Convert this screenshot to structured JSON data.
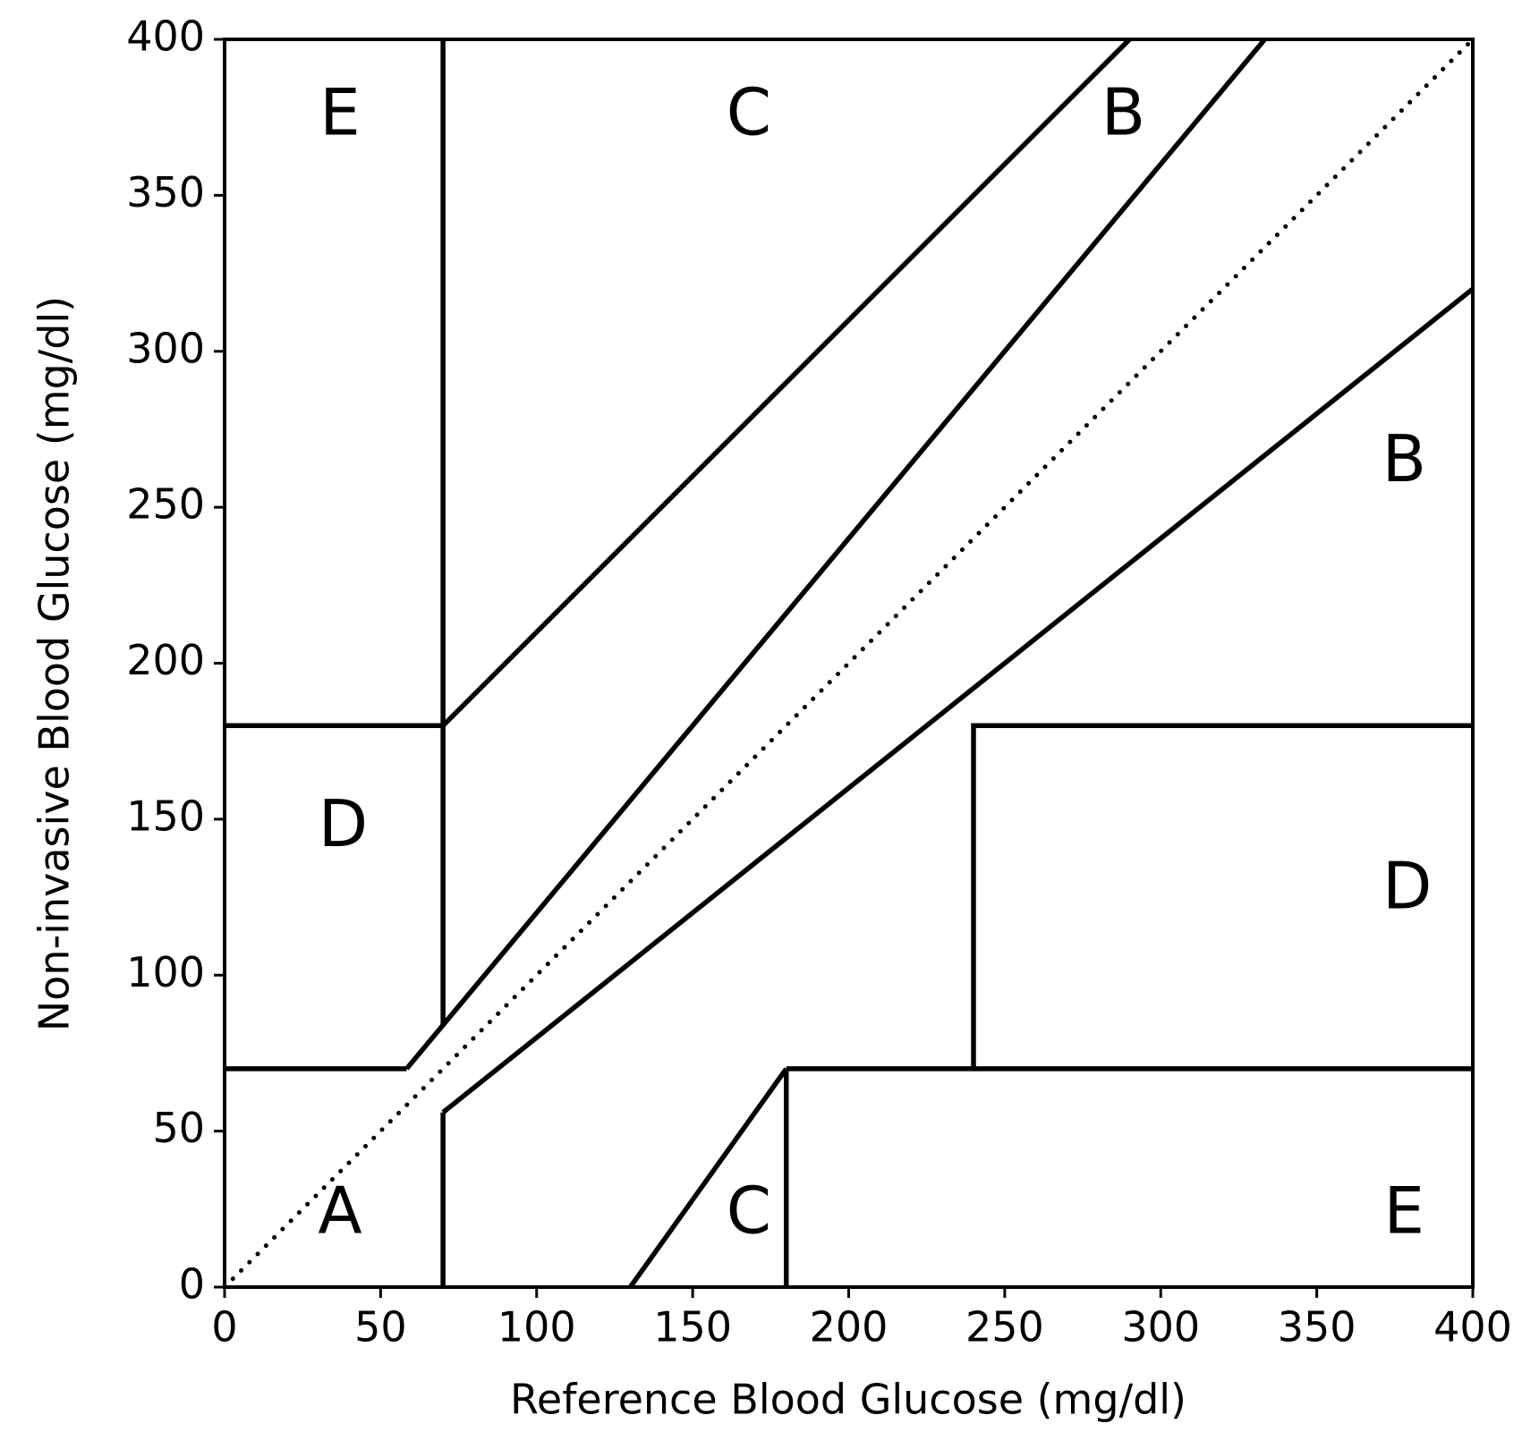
{
  "chart_data": {
    "type": "line",
    "xlabel": "Reference Blood Glucose (mg/dl)",
    "ylabel": "Non-invasive Blood Glucose (mg/dl)",
    "xlim": [
      0,
      400
    ],
    "ylim": [
      0,
      400
    ],
    "xticks": [
      0,
      50,
      100,
      150,
      200,
      250,
      300,
      350,
      400
    ],
    "yticks": [
      0,
      50,
      100,
      150,
      200,
      250,
      300,
      350,
      400
    ],
    "grid": false,
    "series": [
      {
        "color": "#000000",
        "style": "dotted",
        "x": [
          0,
          400
        ],
        "values": [
          0,
          400
        ]
      },
      {
        "color": "#000000",
        "style": "solid",
        "x": [
          0,
          58.33
        ],
        "values": [
          70,
          70
        ]
      },
      {
        "color": "#000000",
        "style": "solid",
        "x": [
          58.33,
          333.33
        ],
        "values": [
          70,
          400
        ]
      },
      {
        "color": "#000000",
        "style": "solid",
        "x": [
          70,
          70
        ],
        "values": [
          84,
          400
        ]
      },
      {
        "color": "#000000",
        "style": "solid",
        "x": [
          0,
          70
        ],
        "values": [
          180,
          180
        ]
      },
      {
        "color": "#000000",
        "style": "solid",
        "x": [
          70,
          290
        ],
        "values": [
          180,
          400
        ]
      },
      {
        "color": "#000000",
        "style": "solid",
        "x": [
          70,
          70
        ],
        "values": [
          0,
          56
        ]
      },
      {
        "color": "#000000",
        "style": "solid",
        "x": [
          70,
          400
        ],
        "values": [
          56,
          320
        ]
      },
      {
        "color": "#000000",
        "style": "solid",
        "x": [
          130,
          180
        ],
        "values": [
          0,
          70
        ]
      },
      {
        "color": "#000000",
        "style": "solid",
        "x": [
          180,
          180
        ],
        "values": [
          0,
          70
        ]
      },
      {
        "color": "#000000",
        "style": "solid",
        "x": [
          180,
          400
        ],
        "values": [
          70,
          70
        ]
      },
      {
        "color": "#000000",
        "style": "solid",
        "x": [
          240,
          240,
          400
        ],
        "values": [
          70,
          180,
          180
        ]
      }
    ],
    "annotations": [
      {
        "text": "E",
        "x": 37,
        "y": 375
      },
      {
        "text": "C",
        "x": 168,
        "y": 375
      },
      {
        "text": "B",
        "x": 288,
        "y": 375
      },
      {
        "text": "B",
        "x": 378,
        "y": 264
      },
      {
        "text": "D",
        "x": 38,
        "y": 147
      },
      {
        "text": "D",
        "x": 379,
        "y": 127
      },
      {
        "text": "A",
        "x": 37,
        "y": 23
      },
      {
        "text": "C",
        "x": 168,
        "y": 23
      },
      {
        "text": "E",
        "x": 378,
        "y": 23
      }
    ]
  }
}
